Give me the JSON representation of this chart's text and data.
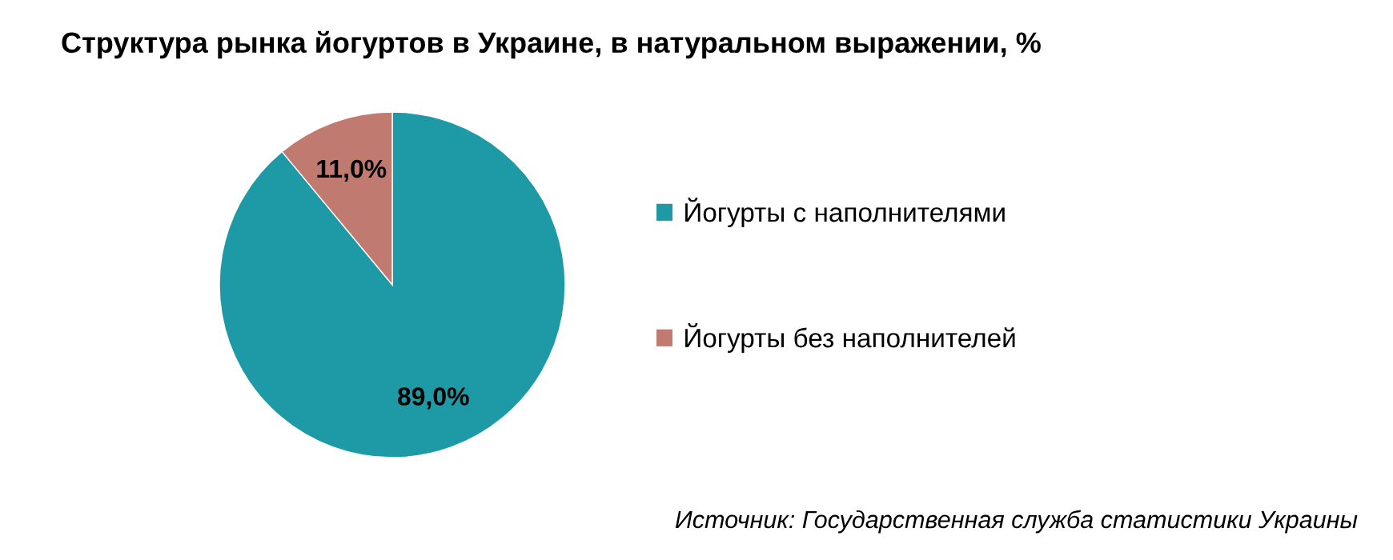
{
  "chart_data": {
    "type": "pie",
    "title": "Структура рынка йогуртов в Украине, в натуральном выражении, %",
    "categories": [
      "Йогурты с наполнителями",
      "Йогурты без наполнителей"
    ],
    "values": [
      89.0,
      11.0
    ],
    "colors": [
      "#1e9aa6",
      "#c07a70"
    ],
    "value_labels": [
      "89,0%",
      "11,0%"
    ],
    "legend": "right",
    "annotations": [
      "Источник: Государственная служба статистики Украины"
    ]
  }
}
